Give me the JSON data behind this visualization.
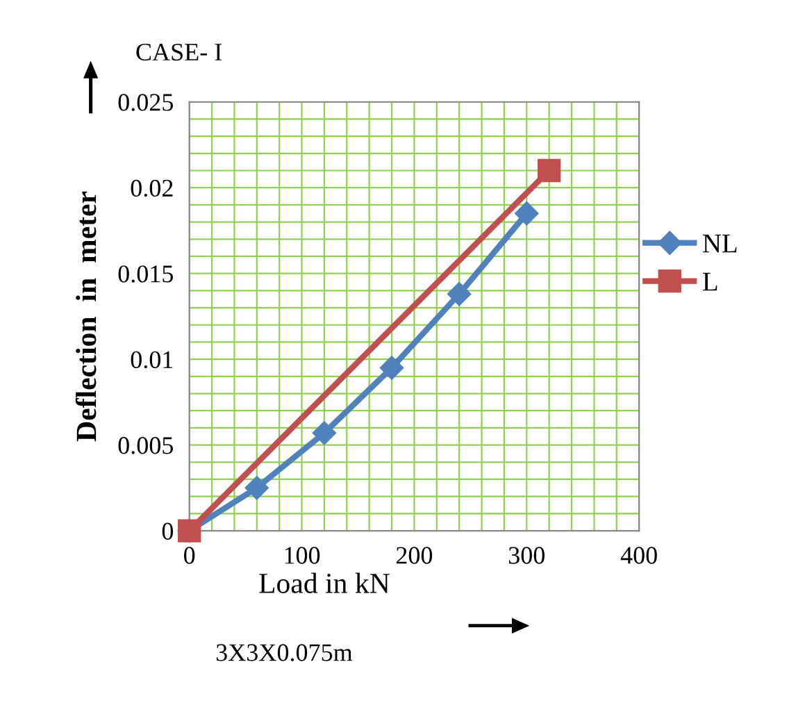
{
  "chart_data": {
    "type": "line",
    "title": "CASE- I",
    "xlabel": "Load in kN",
    "ylabel": "Deflection  in  meter",
    "annotations": [
      "3X3X0.075m"
    ],
    "series": [
      {
        "name": "NL",
        "color": "#4f81bd",
        "marker": "diamond",
        "x": [
          0,
          60,
          120,
          180,
          240,
          300
        ],
        "values": [
          0,
          0.0025,
          0.0057,
          0.0095,
          0.0138,
          0.0185
        ]
      },
      {
        "name": "L",
        "color": "#c0504d",
        "marker": "square",
        "x": [
          0,
          320
        ],
        "values": [
          0,
          0.021
        ]
      }
    ],
    "xlim": [
      0,
      400
    ],
    "ylim": [
      0,
      0.025
    ],
    "xticks": [
      0,
      {
        "value": 20,
        "label": null
      },
      {
        "value": 40,
        "label": null
      },
      {
        "value": 60,
        "label": null
      },
      {
        "value": 80,
        "label": null
      },
      100,
      {
        "value": 120,
        "label": null
      },
      {
        "value": 140,
        "label": null
      },
      {
        "value": 160,
        "label": null
      },
      {
        "value": 180,
        "label": null
      },
      200,
      {
        "value": 220,
        "label": null
      },
      {
        "value": 240,
        "label": null
      },
      {
        "value": 260,
        "label": null
      },
      {
        "value": 280,
        "label": null
      },
      300,
      {
        "value": 320,
        "label": null
      },
      {
        "value": 340,
        "label": null
      },
      {
        "value": 360,
        "label": null
      },
      {
        "value": 380,
        "label": null
      },
      400
    ],
    "yticks": [
      0,
      {
        "value": 0.001,
        "label": null
      },
      {
        "value": 0.002,
        "label": null
      },
      {
        "value": 0.003,
        "label": null
      },
      {
        "value": 0.004,
        "label": null
      },
      0.005,
      {
        "value": 0.006,
        "label": null
      },
      {
        "value": 0.007,
        "label": null
      },
      {
        "value": 0.008,
        "label": null
      },
      {
        "value": 0.009,
        "label": null
      },
      0.01,
      {
        "value": 0.011,
        "label": null
      },
      {
        "value": 0.012,
        "label": null
      },
      {
        "value": 0.013,
        "label": null
      },
      {
        "value": 0.014,
        "label": null
      },
      0.015,
      {
        "value": 0.016,
        "label": null
      },
      {
        "value": 0.017,
        "label": null
      },
      {
        "value": 0.018,
        "label": null
      },
      {
        "value": 0.019,
        "label": null
      },
      0.02,
      {
        "value": 0.021,
        "label": null
      },
      {
        "value": 0.022,
        "label": null
      },
      {
        "value": 0.023,
        "label": null
      },
      {
        "value": 0.024,
        "label": null
      },
      0.025
    ],
    "grid": true,
    "legend": "right",
    "line_style": "solid"
  }
}
